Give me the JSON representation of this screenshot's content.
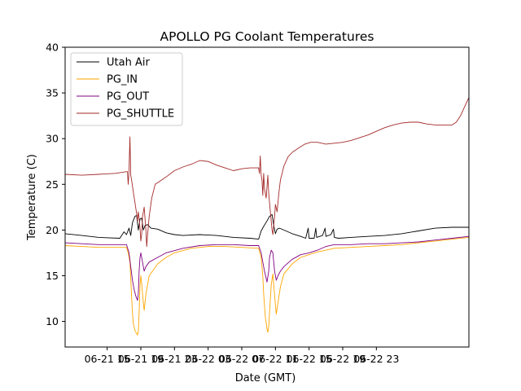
{
  "chart_data": {
    "type": "line",
    "title": "APOLLO PG Coolant Temperatures",
    "xlabel": "Date (GMT)",
    "ylabel": "Temperature (C)",
    "xlim": [
      10,
      58
    ],
    "ylim": [
      7.2,
      40
    ],
    "x_unit": "hours since 06-21 00:00 GMT",
    "x_ticks": [
      {
        "x": 15,
        "label": "06-21 15"
      },
      {
        "x": 19,
        "label": "06-21 19"
      },
      {
        "x": 23,
        "label": "06-21 23"
      },
      {
        "x": 27,
        "label": "06-22 03"
      },
      {
        "x": 31,
        "label": "06-22 07"
      },
      {
        "x": 35,
        "label": "06-22 11"
      },
      {
        "x": 39,
        "label": "06-22 15"
      },
      {
        "x": 43,
        "label": "06-22 19"
      },
      {
        "x": 47,
        "label": "06-22 23"
      }
    ],
    "y_ticks": [
      10,
      15,
      20,
      25,
      30,
      35,
      40
    ],
    "legend": {
      "placement": "top-left"
    },
    "series": [
      {
        "name": "Utah Air",
        "color": "#000000",
        "points": [
          [
            10,
            19.6
          ],
          [
            12,
            19.4
          ],
          [
            14,
            19.2
          ],
          [
            16.5,
            19.1
          ],
          [
            17,
            19.8
          ],
          [
            17.3,
            19.5
          ],
          [
            17.6,
            20.2
          ],
          [
            17.8,
            19.4
          ],
          [
            18.0,
            20.8
          ],
          [
            18.3,
            21.5
          ],
          [
            18.5,
            21.6
          ],
          [
            18.7,
            20.0
          ],
          [
            18.9,
            21.2
          ],
          [
            19.1,
            21.3
          ],
          [
            19.3,
            20.0
          ],
          [
            19.5,
            20.5
          ],
          [
            19.8,
            20.6
          ],
          [
            20.2,
            20.2
          ],
          [
            21,
            20.1
          ],
          [
            22,
            19.7
          ],
          [
            23,
            19.5
          ],
          [
            24,
            19.4
          ],
          [
            26,
            19.5
          ],
          [
            28,
            19.4
          ],
          [
            30,
            19.2
          ],
          [
            32,
            19.1
          ],
          [
            33,
            19.0
          ],
          [
            33.3,
            19.9
          ],
          [
            33.6,
            20.4
          ],
          [
            34.0,
            21.0
          ],
          [
            34.3,
            21.5
          ],
          [
            34.6,
            21.7
          ],
          [
            34.8,
            20.5
          ],
          [
            35.0,
            19.6
          ],
          [
            35.2,
            20.1
          ],
          [
            35.5,
            20.2
          ],
          [
            36,
            20.0
          ],
          [
            37,
            19.6
          ],
          [
            38,
            19.3
          ],
          [
            38.6,
            19.1
          ],
          [
            38.9,
            20.2
          ],
          [
            39.0,
            19.1
          ],
          [
            39.6,
            19.1
          ],
          [
            39.8,
            20.2
          ],
          [
            39.9,
            19.2
          ],
          [
            40.6,
            19.4
          ],
          [
            40.9,
            20.2
          ],
          [
            41.0,
            19.3
          ],
          [
            41.6,
            19.5
          ],
          [
            41.9,
            20.1
          ],
          [
            42.0,
            19.2
          ],
          [
            42.5,
            19.1
          ],
          [
            44,
            19.2
          ],
          [
            46,
            19.3
          ],
          [
            48,
            19.4
          ],
          [
            50,
            19.6
          ],
          [
            52,
            19.9
          ],
          [
            54,
            20.2
          ],
          [
            56,
            20.3
          ],
          [
            58,
            20.3
          ]
        ]
      },
      {
        "name": "PG_IN",
        "color": "#ffa500",
        "points": [
          [
            10,
            18.3
          ],
          [
            12,
            18.2
          ],
          [
            14,
            18.1
          ],
          [
            16,
            18.1
          ],
          [
            17.3,
            18.1
          ],
          [
            17.5,
            17.5
          ],
          [
            17.7,
            16.5
          ],
          [
            17.8,
            14.8
          ],
          [
            17.9,
            12.8
          ],
          [
            18.0,
            11.0
          ],
          [
            18.1,
            9.8
          ],
          [
            18.3,
            9.0
          ],
          [
            18.5,
            8.7
          ],
          [
            18.6,
            8.5
          ],
          [
            18.7,
            8.9
          ],
          [
            18.8,
            11.0
          ],
          [
            18.9,
            14.0
          ],
          [
            19.0,
            15.0
          ],
          [
            19.1,
            14.2
          ],
          [
            19.3,
            12.0
          ],
          [
            19.4,
            11.2
          ],
          [
            19.6,
            13.0
          ],
          [
            20.0,
            15.0
          ],
          [
            21,
            16.3
          ],
          [
            22,
            17.0
          ],
          [
            23,
            17.5
          ],
          [
            25,
            18.0
          ],
          [
            27,
            18.2
          ],
          [
            29,
            18.2
          ],
          [
            31,
            18.1
          ],
          [
            33,
            18.0
          ],
          [
            33.3,
            17.0
          ],
          [
            33.5,
            15.0
          ],
          [
            33.6,
            13.0
          ],
          [
            33.8,
            10.5
          ],
          [
            34.0,
            9.2
          ],
          [
            34.1,
            8.8
          ],
          [
            34.2,
            9.5
          ],
          [
            34.3,
            11.0
          ],
          [
            34.5,
            14.0
          ],
          [
            34.7,
            15.2
          ],
          [
            34.8,
            14.0
          ],
          [
            35.0,
            11.8
          ],
          [
            35.1,
            10.8
          ],
          [
            35.3,
            12.0
          ],
          [
            35.6,
            13.8
          ],
          [
            36,
            15.2
          ],
          [
            37,
            16.3
          ],
          [
            38,
            17.0
          ],
          [
            40,
            17.6
          ],
          [
            42,
            18.0
          ],
          [
            44,
            18.1
          ],
          [
            46,
            18.2
          ],
          [
            48,
            18.3
          ],
          [
            50,
            18.4
          ],
          [
            52,
            18.6
          ],
          [
            54,
            18.8
          ],
          [
            56,
            19.0
          ],
          [
            58,
            19.2
          ]
        ]
      },
      {
        "name": "PG_OUT",
        "color": "#800080",
        "points": [
          [
            10,
            18.6
          ],
          [
            12,
            18.5
          ],
          [
            14,
            18.4
          ],
          [
            16,
            18.4
          ],
          [
            17.3,
            18.4
          ],
          [
            17.6,
            17.5
          ],
          [
            17.8,
            16.0
          ],
          [
            18.0,
            14.5
          ],
          [
            18.2,
            13.5
          ],
          [
            18.4,
            12.8
          ],
          [
            18.6,
            12.3
          ],
          [
            18.7,
            13.0
          ],
          [
            18.8,
            15.5
          ],
          [
            18.9,
            17.0
          ],
          [
            19.0,
            17.5
          ],
          [
            19.2,
            16.5
          ],
          [
            19.4,
            15.5
          ],
          [
            19.6,
            16.0
          ],
          [
            20.0,
            16.5
          ],
          [
            21,
            17.0
          ],
          [
            22,
            17.5
          ],
          [
            24,
            18.0
          ],
          [
            26,
            18.3
          ],
          [
            28,
            18.4
          ],
          [
            30,
            18.4
          ],
          [
            32,
            18.3
          ],
          [
            33,
            18.3
          ],
          [
            33.3,
            17.5
          ],
          [
            33.5,
            16.5
          ],
          [
            33.7,
            15.5
          ],
          [
            33.9,
            14.7
          ],
          [
            34.0,
            14.3
          ],
          [
            34.2,
            15.5
          ],
          [
            34.3,
            17.0
          ],
          [
            34.5,
            17.8
          ],
          [
            34.7,
            17.5
          ],
          [
            34.9,
            15.5
          ],
          [
            35.1,
            14.5
          ],
          [
            35.3,
            15.0
          ],
          [
            35.6,
            15.5
          ],
          [
            36,
            16.0
          ],
          [
            37,
            16.8
          ],
          [
            38,
            17.3
          ],
          [
            39,
            17.5
          ],
          [
            40,
            17.8
          ],
          [
            41,
            18.2
          ],
          [
            42,
            18.4
          ],
          [
            44,
            18.4
          ],
          [
            46,
            18.5
          ],
          [
            48,
            18.5
          ],
          [
            50,
            18.6
          ],
          [
            52,
            18.7
          ],
          [
            54,
            18.9
          ],
          [
            56,
            19.1
          ],
          [
            58,
            19.3
          ]
        ]
      },
      {
        "name": "PG_SHUTTLE",
        "color": "#a52a2a",
        "points": [
          [
            10,
            26.1
          ],
          [
            12,
            26.0
          ],
          [
            14,
            26.1
          ],
          [
            16,
            26.2
          ],
          [
            17.4,
            26.4
          ],
          [
            17.5,
            25.0
          ],
          [
            17.6,
            26.5
          ],
          [
            17.7,
            30.2
          ],
          [
            17.8,
            26.0
          ],
          [
            17.9,
            25.5
          ],
          [
            18.1,
            24.2
          ],
          [
            18.3,
            23.0
          ],
          [
            18.5,
            21.8
          ],
          [
            18.6,
            21.0
          ],
          [
            18.7,
            22.0
          ],
          [
            18.8,
            21.3
          ],
          [
            18.9,
            20.2
          ],
          [
            19.0,
            18.8
          ],
          [
            19.1,
            19.5
          ],
          [
            19.2,
            21.5
          ],
          [
            19.4,
            22.5
          ],
          [
            19.6,
            20.0
          ],
          [
            19.7,
            18.2
          ],
          [
            19.8,
            19.5
          ],
          [
            20.0,
            21.5
          ],
          [
            20.3,
            23.5
          ],
          [
            20.7,
            25.0
          ],
          [
            21.2,
            25.3
          ],
          [
            22,
            25.8
          ],
          [
            23,
            26.5
          ],
          [
            24,
            26.9
          ],
          [
            25,
            27.2
          ],
          [
            26,
            27.6
          ],
          [
            27,
            27.5
          ],
          [
            28,
            27.1
          ],
          [
            29,
            26.8
          ],
          [
            30,
            26.5
          ],
          [
            31,
            26.7
          ],
          [
            32,
            26.8
          ],
          [
            33,
            26.8
          ],
          [
            33.1,
            26.2
          ],
          [
            33.2,
            28.1
          ],
          [
            33.3,
            26.0
          ],
          [
            33.4,
            25.5
          ],
          [
            33.5,
            23.8
          ],
          [
            33.6,
            26.2
          ],
          [
            33.7,
            24.5
          ],
          [
            33.9,
            23.5
          ],
          [
            34.1,
            26.0
          ],
          [
            34.2,
            24.0
          ],
          [
            34.4,
            22.0
          ],
          [
            34.6,
            20.0
          ],
          [
            34.7,
            19.5
          ],
          [
            34.9,
            21.5
          ],
          [
            35.0,
            22.8
          ],
          [
            35.2,
            22.0
          ],
          [
            35.4,
            24.0
          ],
          [
            35.6,
            25.5
          ],
          [
            35.8,
            26.2
          ],
          [
            36,
            27.0
          ],
          [
            36.5,
            28.0
          ],
          [
            37,
            28.5
          ],
          [
            37.8,
            29.0
          ],
          [
            38.5,
            29.4
          ],
          [
            39.2,
            29.6
          ],
          [
            40,
            29.6
          ],
          [
            41,
            29.4
          ],
          [
            42,
            29.5
          ],
          [
            43,
            29.6
          ],
          [
            44,
            29.8
          ],
          [
            45,
            30.1
          ],
          [
            46,
            30.4
          ],
          [
            47,
            30.8
          ],
          [
            48,
            31.2
          ],
          [
            49,
            31.5
          ],
          [
            50,
            31.7
          ],
          [
            51,
            31.8
          ],
          [
            52,
            31.8
          ],
          [
            53,
            31.6
          ],
          [
            54,
            31.5
          ],
          [
            55,
            31.5
          ],
          [
            56,
            31.5
          ],
          [
            56.5,
            31.8
          ],
          [
            57,
            32.5
          ],
          [
            57.5,
            33.5
          ],
          [
            58,
            34.5
          ]
        ]
      }
    ]
  }
}
